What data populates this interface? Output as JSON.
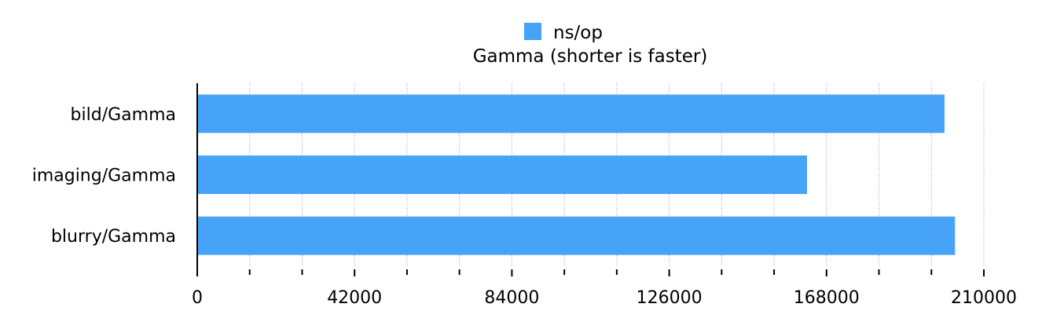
{
  "chart_data": {
    "type": "bar",
    "orientation": "horizontal",
    "title": "Gamma (shorter is faster)",
    "legend": {
      "position": "top",
      "entries": [
        "ns/op"
      ]
    },
    "categories": [
      "bild/Gamma",
      "imaging/Gamma",
      "blurry/Gamma"
    ],
    "series": [
      {
        "name": "ns/op",
        "color": "#46a3f7",
        "values": [
          199500,
          162800,
          202300
        ]
      }
    ],
    "xlim": [
      0,
      210000
    ],
    "x_ticks": [
      0,
      42000,
      84000,
      126000,
      168000,
      210000
    ],
    "x_tick_labels": [
      "0",
      "42000",
      "84000",
      "126000",
      "168000",
      "210000"
    ],
    "x_minor_step": 14000,
    "grid": "vertical dotted",
    "xlabel": "",
    "ylabel": ""
  }
}
